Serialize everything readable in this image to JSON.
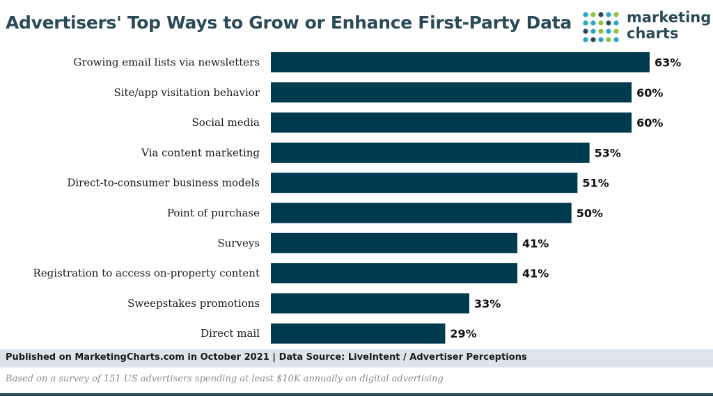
{
  "title": "Advertisers' Top Ways to Grow or Enhance First-Party Data",
  "logo": {
    "line1": "marketing",
    "line2": "charts"
  },
  "colors": {
    "bar": "#003a4f",
    "title": "#2b4a57",
    "footer_bg": "#dbe5ea",
    "logo_dots": [
      "#2aa7c2",
      "#8cc43f",
      "#2b4a57"
    ]
  },
  "footer": {
    "source": "Published on MarketingCharts.com in October 2021 | Data Source: LiveIntent / Advertiser Perceptions",
    "note": "Based on a survey of 151 US advertisers spending at least $10K annually on digital advertising"
  },
  "chart_data": {
    "type": "bar",
    "orientation": "horizontal",
    "categories": [
      "Growing email lists via newsletters",
      "Site/app visitation behavior",
      "Social media",
      "Via content marketing",
      "Direct-to-consumer business models",
      "Point of purchase",
      "Surveys",
      "Registration to access on-property content",
      "Sweepstakes promotions",
      "Direct mail"
    ],
    "values": [
      63,
      60,
      60,
      53,
      51,
      50,
      41,
      41,
      33,
      29
    ],
    "value_labels": [
      "63%",
      "60%",
      "60%",
      "53%",
      "51%",
      "50%",
      "41%",
      "41%",
      "33%",
      "29%"
    ],
    "xlim": [
      0,
      63
    ],
    "grid": false,
    "legend": "none"
  }
}
